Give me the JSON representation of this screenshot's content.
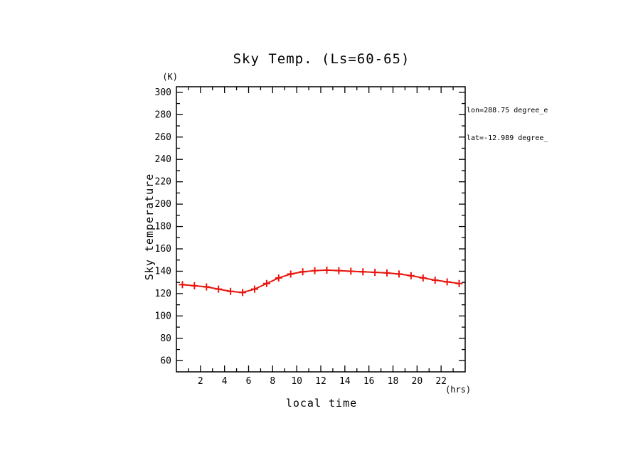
{
  "chart_data": {
    "type": "line",
    "title": "Sky Temp. (Ls=60-65)",
    "xlabel": "local time",
    "ylabel": "Sky temperature",
    "x_unit": "(hrs)",
    "y_unit": "(K)",
    "annotations": [
      "lon=288.75 degree_e",
      "lat=-12.989 degree_"
    ],
    "line_color": "#e8150d",
    "axis_color": "#000000",
    "xlim": [
      0,
      24
    ],
    "ylim": [
      50,
      305
    ],
    "xticks": [
      2,
      4,
      6,
      8,
      10,
      12,
      14,
      16,
      18,
      20,
      22
    ],
    "yticks": [
      60,
      80,
      100,
      120,
      140,
      160,
      180,
      200,
      220,
      240,
      260,
      280,
      300
    ],
    "x": [
      0.5,
      1.5,
      2.5,
      3.5,
      4.5,
      5.5,
      6.5,
      7.5,
      8.5,
      9.5,
      10.5,
      11.5,
      12.5,
      13.5,
      14.5,
      15.5,
      16.5,
      17.5,
      18.5,
      19.5,
      20.5,
      21.5,
      22.5,
      23.5
    ],
    "values": [
      128,
      127,
      126,
      124,
      122,
      121,
      124,
      129,
      134,
      137.5,
      139.5,
      140.5,
      141,
      140.5,
      140,
      139.5,
      139,
      138.5,
      137.5,
      136,
      134,
      132,
      130.5,
      129
    ],
    "legend": "none",
    "grid": "off",
    "marker": "plus"
  }
}
